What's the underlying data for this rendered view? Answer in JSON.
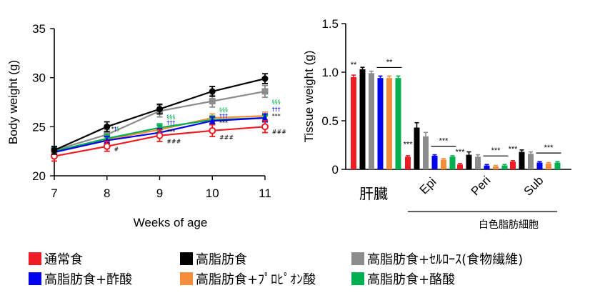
{
  "chart_data": [
    {
      "type": "line",
      "xlabel": "Weeks of age",
      "ylabel": "Body weight (g)",
      "x": [
        7,
        8,
        9,
        10,
        11
      ],
      "xticks": [
        "7",
        "8",
        "9",
        "10",
        "11"
      ],
      "ylim": [
        20,
        35
      ],
      "yticks": [
        "20",
        "25",
        "30",
        "35"
      ],
      "series": [
        {
          "name": "通常食",
          "color": "#ee1c24",
          "marker": "circle-open",
          "values": [
            22.0,
            23.0,
            24.1,
            24.6,
            25.0
          ],
          "err": [
            0.5,
            0.5,
            0.6,
            0.6,
            0.6
          ]
        },
        {
          "name": "高脂肪食",
          "color": "#000000",
          "marker": "circle",
          "values": [
            22.6,
            25.0,
            26.8,
            28.6,
            29.9
          ],
          "err": [
            0.4,
            0.5,
            0.5,
            0.5,
            0.5
          ]
        },
        {
          "name": "高脂肪食+ｾﾙﾛｰｽ(食物繊維)",
          "color": "#8c8c8c",
          "marker": "square",
          "values": [
            22.6,
            24.2,
            26.6,
            27.6,
            28.6
          ],
          "err": [
            0.4,
            0.5,
            0.6,
            0.6,
            0.6
          ]
        },
        {
          "name": "高脂肪食+酢酸",
          "color": "#0000ee",
          "marker": "triangle",
          "values": [
            22.4,
            23.6,
            24.4,
            25.6,
            25.9
          ],
          "err": [
            0.4,
            0.4,
            0.4,
            0.4,
            0.4
          ]
        },
        {
          "name": "高脂肪食+ﾌﾟﾛﾋﾟｵﾝ酸",
          "color": "#f58d3c",
          "marker": "diamond",
          "values": [
            22.5,
            23.7,
            24.7,
            25.9,
            26.1
          ],
          "err": [
            0.4,
            0.4,
            0.4,
            0.4,
            0.4
          ]
        },
        {
          "name": "高脂肪食+酪酸",
          "color": "#00b050",
          "marker": "triangle-down",
          "values": [
            22.5,
            23.8,
            24.9,
            25.7,
            25.9
          ],
          "err": [
            0.4,
            0.4,
            0.4,
            0.4,
            0.4
          ]
        }
      ],
      "annotations": [
        {
          "x": 8,
          "y": 24.6,
          "text": "*",
          "color": "#000000"
        },
        {
          "x": 8.05,
          "y": 24.6,
          "text": "†",
          "color": "#0000ee"
        },
        {
          "x": 8.1,
          "y": 24.6,
          "text": "§",
          "color": "#00b050"
        },
        {
          "x": 8.05,
          "y": 22.5,
          "text": "#",
          "color": "#000000"
        },
        {
          "x": 9.05,
          "y": 25.8,
          "text": "§§§",
          "color": "#00b050"
        },
        {
          "x": 9.05,
          "y": 25.2,
          "text": "†††",
          "color": "#0000ee"
        },
        {
          "x": 9.05,
          "y": 24.3,
          "text": "***",
          "color": "#000000"
        },
        {
          "x": 9.05,
          "y": 23.3,
          "text": "###",
          "color": "#000000"
        },
        {
          "x": 10.05,
          "y": 26.5,
          "text": "§§§",
          "color": "#00b050"
        },
        {
          "x": 10.05,
          "y": 25.9,
          "text": "†††",
          "color": "#0000ee"
        },
        {
          "x": 10.05,
          "y": 25.2,
          "text": "***",
          "color": "#000000"
        },
        {
          "x": 10.05,
          "y": 23.7,
          "text": "###",
          "color": "#000000"
        },
        {
          "x": 11.05,
          "y": 27.3,
          "text": "§§§",
          "color": "#00b050"
        },
        {
          "x": 11.05,
          "y": 26.6,
          "text": "†††",
          "color": "#0000ee"
        },
        {
          "x": 11.05,
          "y": 25.9,
          "text": "***",
          "color": "#000000"
        },
        {
          "x": 11.05,
          "y": 24.3,
          "text": "###",
          "color": "#000000"
        }
      ]
    },
    {
      "type": "bar",
      "ylabel": "Tissue weight (g)",
      "ylim": [
        0,
        1.5
      ],
      "yticks": [
        "0",
        "0.5",
        "1.0",
        "1.5"
      ],
      "categories": [
        "肝臓",
        "Epi",
        "Peri",
        "Sub"
      ],
      "group_label": "白色脂肪細胞",
      "series": [
        {
          "name": "通常食",
          "color": "#ee1c24",
          "values": [
            0.95,
            0.13,
            0.05,
            0.08
          ],
          "err": [
            0.02,
            0.01,
            0.01,
            0.01
          ]
        },
        {
          "name": "高脂肪食",
          "color": "#000000",
          "values": [
            1.03,
            0.43,
            0.15,
            0.18
          ],
          "err": [
            0.02,
            0.05,
            0.03,
            0.02
          ]
        },
        {
          "name": "高脂肪食+ｾﾙﾛｰｽ(食物繊維)",
          "color": "#8c8c8c",
          "values": [
            0.99,
            0.34,
            0.13,
            0.16
          ],
          "err": [
            0.02,
            0.04,
            0.02,
            0.02
          ]
        },
        {
          "name": "高脂肪食+酢酸",
          "color": "#0000ee",
          "values": [
            0.94,
            0.14,
            0.04,
            0.07
          ],
          "err": [
            0.02,
            0.01,
            0.01,
            0.01
          ]
        },
        {
          "name": "高脂肪食+ﾌﾟﾛﾋﾟｵﾝ酸",
          "color": "#f58d3c",
          "values": [
            0.94,
            0.1,
            0.03,
            0.06
          ],
          "err": [
            0.02,
            0.01,
            0.01,
            0.01
          ]
        },
        {
          "name": "高脂肪食+酪酸",
          "color": "#00b050",
          "values": [
            0.94,
            0.13,
            0.04,
            0.07
          ],
          "err": [
            0.02,
            0.01,
            0.01,
            0.01
          ]
        }
      ],
      "significance": [
        {
          "category": "肝臓",
          "left": "**",
          "bracket": "**"
        },
        {
          "category": "Epi",
          "left": "***",
          "bracket": "***"
        },
        {
          "category": "Peri",
          "left": "***",
          "bracket": "***"
        },
        {
          "category": "Sub",
          "left": "***",
          "bracket": "***"
        }
      ]
    }
  ],
  "legend": {
    "rows": [
      [
        {
          "label": "通常食",
          "color": "#ee1c24"
        },
        {
          "label": "高脂肪食",
          "color": "#000000"
        },
        {
          "label": "高脂肪食+ｾﾙﾛｰｽ(食物繊維)",
          "color": "#8c8c8c"
        }
      ],
      [
        {
          "label": "高脂肪食+酢酸",
          "color": "#0000ee"
        },
        {
          "label": "高脂肪食+ﾌﾟﾛﾋﾟｵﾝ酸",
          "color": "#f58d3c"
        },
        {
          "label": "高脂肪食+酪酸",
          "color": "#00b050"
        }
      ]
    ]
  }
}
